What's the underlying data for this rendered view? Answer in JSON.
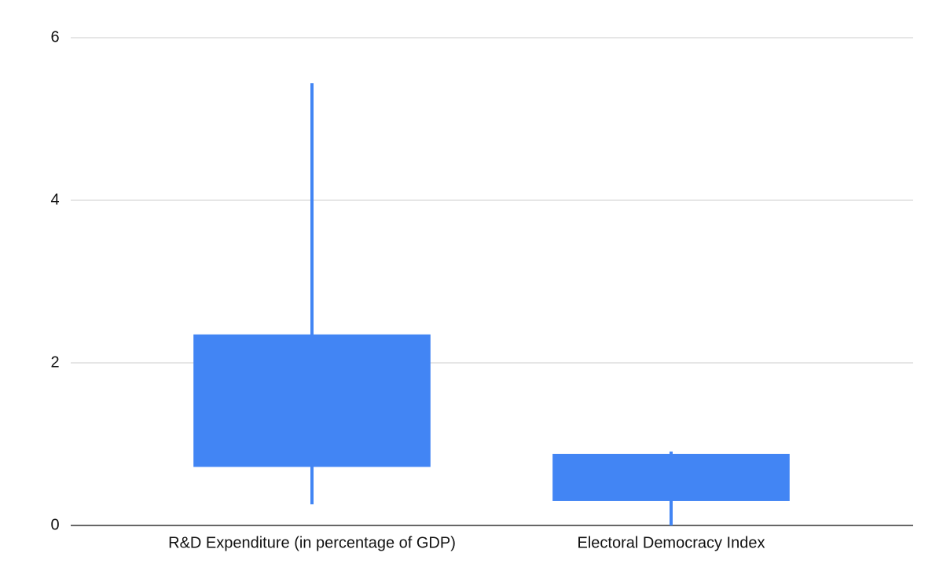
{
  "chart_data": {
    "type": "candlestick",
    "categories": [
      "R&D Expenditure (in percentage of GDP)",
      "Electoral Democracy Index"
    ],
    "low": [
      0.26,
      0
    ],
    "open": [
      0.72,
      0.3
    ],
    "close": [
      2.35,
      0.88
    ],
    "high": [
      5.44,
      0.91
    ],
    "color": "#4285f4",
    "ylim": [
      0,
      6
    ],
    "yticks": [
      0,
      2,
      4,
      6
    ],
    "grid": true
  }
}
